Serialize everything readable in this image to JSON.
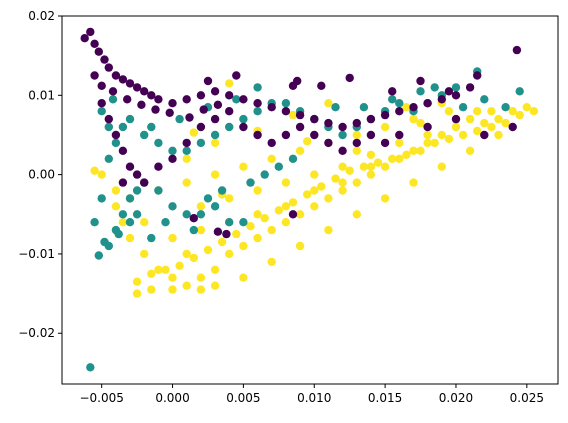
{
  "chart_data": {
    "type": "scatter",
    "title": "",
    "xlabel": "",
    "ylabel": "",
    "xlim": [
      -0.0078,
      0.0272
    ],
    "ylim": [
      -0.0264,
      0.02
    ],
    "grid": false,
    "x_ticks": [
      "−0.005",
      "0.000",
      "0.005",
      "0.010",
      "0.015",
      "0.020",
      "0.025"
    ],
    "y_ticks": [
      "0.02",
      "0.01",
      "0.00",
      "−0.01",
      "−0.02"
    ],
    "x_tick_values": [
      -0.005,
      0.0,
      0.005,
      0.01,
      0.015,
      0.02,
      0.025
    ],
    "y_tick_values": [
      0.02,
      0.01,
      0.0,
      -0.01,
      -0.02
    ],
    "series": [
      {
        "color": "#fde725",
        "points": [
          [
            -0.0035,
            -0.006
          ],
          [
            -0.003,
            -0.008
          ],
          [
            -0.002,
            -0.01
          ],
          [
            -0.001,
            -0.012
          ],
          [
            0.0,
            -0.013
          ],
          [
            0.001,
            -0.014
          ],
          [
            0.002,
            -0.013
          ],
          [
            0.003,
            -0.012
          ],
          [
            0.004,
            -0.01
          ],
          [
            0.005,
            -0.009
          ],
          [
            0.006,
            -0.008
          ],
          [
            0.007,
            -0.007
          ],
          [
            0.008,
            -0.006
          ],
          [
            0.009,
            -0.005
          ],
          [
            0.01,
            -0.004
          ],
          [
            0.011,
            -0.003
          ],
          [
            0.012,
            -0.002
          ],
          [
            0.013,
            -0.001
          ],
          [
            0.014,
            0.0
          ],
          [
            0.015,
            0.001
          ],
          [
            0.016,
            0.002
          ],
          [
            0.017,
            0.003
          ],
          [
            0.018,
            0.004
          ],
          [
            0.019,
            0.005
          ],
          [
            0.02,
            0.006
          ],
          [
            0.021,
            0.007
          ],
          [
            0.022,
            0.0065
          ],
          [
            0.023,
            0.007
          ],
          [
            0.024,
            0.008
          ],
          [
            0.025,
            0.0085
          ],
          [
            0.0255,
            0.008
          ],
          [
            0.0245,
            0.0075
          ],
          [
            0.0235,
            0.0065
          ],
          [
            0.0225,
            0.006
          ],
          [
            0.0215,
            0.0055
          ],
          [
            0.0205,
            0.005
          ],
          [
            0.0195,
            0.0045
          ],
          [
            0.0185,
            0.004
          ],
          [
            0.0175,
            0.003
          ],
          [
            0.0165,
            0.0025
          ],
          [
            0.0155,
            0.002
          ],
          [
            0.0145,
            0.0015
          ],
          [
            0.0135,
            0.001
          ],
          [
            0.0125,
            0.0005
          ],
          [
            0.0115,
            -0.0005
          ],
          [
            0.0105,
            -0.0015
          ],
          [
            0.0095,
            -0.0025
          ],
          [
            0.0085,
            -0.0035
          ],
          [
            0.0075,
            -0.0045
          ],
          [
            0.0065,
            -0.0055
          ],
          [
            0.0055,
            -0.0065
          ],
          [
            0.0045,
            -0.0075
          ],
          [
            0.0035,
            -0.0085
          ],
          [
            0.0025,
            -0.0095
          ],
          [
            0.0015,
            -0.0105
          ],
          [
            0.0005,
            -0.0115
          ],
          [
            -0.0005,
            -0.012
          ],
          [
            -0.0015,
            -0.0125
          ],
          [
            -0.0025,
            -0.0135
          ],
          [
            -0.0025,
            -0.015
          ],
          [
            -0.0015,
            -0.0145
          ],
          [
            0.0,
            -0.0145
          ],
          [
            0.002,
            -0.0145
          ],
          [
            0.003,
            -0.014
          ],
          [
            0.005,
            -0.013
          ],
          [
            0.007,
            -0.011
          ],
          [
            0.009,
            -0.009
          ],
          [
            0.011,
            -0.007
          ],
          [
            0.013,
            -0.005
          ],
          [
            0.015,
            -0.003
          ],
          [
            0.017,
            -0.001
          ],
          [
            0.019,
            0.001
          ],
          [
            0.021,
            0.003
          ],
          [
            0.023,
            0.005
          ],
          [
            0.0195,
            0.008
          ],
          [
            0.017,
            0.007
          ],
          [
            0.015,
            0.006
          ],
          [
            0.013,
            0.005
          ],
          [
            0.011,
            0.004
          ],
          [
            0.009,
            0.003
          ],
          [
            0.007,
            0.002
          ],
          [
            0.005,
            0.001
          ],
          [
            0.003,
            0.0
          ],
          [
            0.001,
            -0.001
          ],
          [
            -0.001,
            -0.002
          ],
          [
            -0.003,
            -0.003
          ],
          [
            -0.004,
            -0.002
          ],
          [
            -0.005,
            0.0
          ],
          [
            -0.0055,
            0.0005
          ],
          [
            -0.004,
            -0.004
          ],
          [
            0.002,
            -0.004
          ],
          [
            0.004,
            -0.003
          ],
          [
            0.006,
            -0.002
          ],
          [
            0.008,
            -0.001
          ],
          [
            0.01,
            0.0
          ],
          [
            0.012,
            0.001
          ],
          [
            0.014,
            0.0025
          ],
          [
            0.016,
            0.004
          ],
          [
            0.018,
            0.005
          ],
          [
            0.02,
            0.007
          ],
          [
            0.0215,
            0.008
          ],
          [
            0.0225,
            0.008
          ],
          [
            0.004,
            0.0115
          ],
          [
            0.011,
            0.009
          ],
          [
            0.0165,
            0.0085
          ],
          [
            0.019,
            0.009
          ],
          [
            0.0085,
            0.0075
          ],
          [
            0.006,
            0.0055
          ],
          [
            0.003,
            0.004
          ],
          [
            0.001,
            0.002
          ],
          [
            0.002,
            -0.007
          ],
          [
            0.004,
            -0.006
          ],
          [
            0.006,
            -0.005
          ],
          [
            0.008,
            -0.004
          ],
          [
            0.01,
            -0.002
          ],
          [
            0.012,
            -0.001
          ],
          [
            0.014,
            0.001
          ],
          [
            -0.002,
            -0.006
          ],
          [
            0.0,
            -0.008
          ],
          [
            0.001,
            -0.01
          ],
          [
            0.0015,
            0.0053
          ],
          [
            0.0035,
            -0.0025
          ],
          [
            0.0095,
            0.0042
          ],
          [
            0.013,
            0.003
          ],
          [
            0.0175,
            0.0065
          ]
        ]
      },
      {
        "color": "#21918c",
        "points": [
          [
            -0.0058,
            -0.0243
          ],
          [
            -0.0052,
            -0.0102
          ],
          [
            -0.0045,
            -0.009
          ],
          [
            -0.004,
            -0.007
          ],
          [
            -0.0035,
            -0.005
          ],
          [
            -0.003,
            -0.003
          ],
          [
            -0.0025,
            -0.002
          ],
          [
            -0.002,
            -0.001
          ],
          [
            -0.001,
            -0.002
          ],
          [
            0.0,
            -0.004
          ],
          [
            0.001,
            -0.005
          ],
          [
            0.002,
            -0.005
          ],
          [
            0.003,
            -0.004
          ],
          [
            0.004,
            -0.006
          ],
          [
            0.005,
            -0.006
          ],
          [
            -0.0045,
            0.002
          ],
          [
            -0.004,
            0.004
          ],
          [
            -0.0035,
            0.006
          ],
          [
            -0.003,
            0.007
          ],
          [
            -0.002,
            0.005
          ],
          [
            -0.001,
            0.004
          ],
          [
            0.0,
            0.003
          ],
          [
            0.001,
            0.003
          ],
          [
            0.002,
            0.004
          ],
          [
            0.003,
            0.005
          ],
          [
            0.004,
            0.006
          ],
          [
            0.005,
            0.007
          ],
          [
            0.006,
            0.008
          ],
          [
            0.007,
            0.009
          ],
          [
            0.008,
            0.009
          ],
          [
            0.009,
            0.008
          ],
          [
            0.01,
            0.007
          ],
          [
            0.011,
            0.006
          ],
          [
            0.012,
            0.005
          ],
          [
            0.013,
            0.006
          ],
          [
            0.014,
            0.007
          ],
          [
            0.015,
            0.008
          ],
          [
            0.016,
            0.009
          ],
          [
            0.017,
            0.008
          ],
          [
            0.018,
            0.009
          ],
          [
            0.019,
            0.01
          ],
          [
            0.02,
            0.011
          ],
          [
            0.0215,
            0.013
          ],
          [
            0.0245,
            0.0105
          ],
          [
            0.006,
            0.011
          ],
          [
            0.0045,
            0.0095
          ],
          [
            0.0025,
            0.0085
          ],
          [
            0.0005,
            0.007
          ],
          [
            -0.0015,
            0.006
          ],
          [
            -0.0025,
            -0.005
          ],
          [
            -0.0015,
            -0.008
          ],
          [
            -0.0005,
            -0.006
          ],
          [
            0.0015,
            -0.007
          ],
          [
            0.0025,
            -0.003
          ],
          [
            0.0035,
            -0.002
          ],
          [
            0.0055,
            -0.001
          ],
          [
            0.0065,
            0.0
          ],
          [
            0.0075,
            0.001
          ],
          [
            0.0085,
            0.002
          ],
          [
            -0.005,
            -0.003
          ],
          [
            -0.0055,
            -0.006
          ],
          [
            -0.0048,
            -0.0085
          ],
          [
            -0.0038,
            -0.0075
          ],
          [
            -0.003,
            -0.006
          ],
          [
            -0.0045,
            0.006
          ],
          [
            -0.005,
            0.008
          ],
          [
            -0.0042,
            0.0095
          ],
          [
            0.0135,
            0.0085
          ],
          [
            0.0155,
            0.0095
          ],
          [
            0.0115,
            0.0085
          ],
          [
            0.0175,
            0.0105
          ],
          [
            0.0185,
            0.011
          ],
          [
            0.022,
            0.0095
          ],
          [
            0.0235,
            0.0085
          ],
          [
            0.0205,
            0.0085
          ]
        ]
      },
      {
        "color": "#440154",
        "points": [
          [
            -0.0062,
            0.0172
          ],
          [
            -0.0058,
            0.018
          ],
          [
            -0.0055,
            0.0165
          ],
          [
            -0.0052,
            0.0155
          ],
          [
            -0.0048,
            0.0145
          ],
          [
            -0.0045,
            0.0135
          ],
          [
            -0.004,
            0.0125
          ],
          [
            -0.0035,
            0.012
          ],
          [
            -0.003,
            0.0115
          ],
          [
            -0.0025,
            0.011
          ],
          [
            -0.002,
            0.0105
          ],
          [
            -0.0015,
            0.01
          ],
          [
            -0.001,
            0.0095
          ],
          [
            0.0,
            0.009
          ],
          [
            0.001,
            0.0095
          ],
          [
            0.002,
            0.01
          ],
          [
            0.003,
            0.0105
          ],
          [
            0.004,
            0.01
          ],
          [
            0.005,
            0.0095
          ],
          [
            0.006,
            0.009
          ],
          [
            0.007,
            0.0085
          ],
          [
            0.008,
            0.008
          ],
          [
            0.009,
            0.0075
          ],
          [
            0.01,
            0.007
          ],
          [
            0.011,
            0.0065
          ],
          [
            0.012,
            0.006
          ],
          [
            0.013,
            0.0065
          ],
          [
            0.014,
            0.007
          ],
          [
            0.015,
            0.0075
          ],
          [
            0.016,
            0.008
          ],
          [
            0.017,
            0.0085
          ],
          [
            0.018,
            0.009
          ],
          [
            0.019,
            0.0095
          ],
          [
            0.02,
            0.01
          ],
          [
            0.021,
            0.011
          ],
          [
            0.0243,
            0.0157
          ],
          [
            0.0125,
            0.0122
          ],
          [
            0.0088,
            0.0118
          ],
          [
            0.0105,
            0.0112
          ],
          [
            0.0155,
            0.0105
          ],
          [
            0.0175,
            0.0118
          ],
          [
            0.0085,
            0.0112
          ],
          [
            0.0045,
            0.0125
          ],
          [
            0.0025,
            0.0118
          ],
          [
            -0.005,
            0.009
          ],
          [
            -0.0045,
            0.007
          ],
          [
            -0.004,
            0.005
          ],
          [
            -0.0035,
            0.003
          ],
          [
            -0.003,
            0.001
          ],
          [
            -0.0025,
            0.0
          ],
          [
            -0.002,
            -0.001
          ],
          [
            -0.001,
            0.001
          ],
          [
            0.0,
            0.002
          ],
          [
            0.001,
            0.004
          ],
          [
            0.002,
            0.006
          ],
          [
            0.003,
            0.007
          ],
          [
            0.004,
            0.008
          ],
          [
            0.005,
            0.006
          ],
          [
            0.006,
            0.005
          ],
          [
            0.007,
            0.004
          ],
          [
            0.008,
            0.005
          ],
          [
            0.009,
            0.006
          ],
          [
            0.01,
            0.005
          ],
          [
            0.011,
            0.004
          ],
          [
            0.012,
            0.003
          ],
          [
            0.013,
            0.004
          ],
          [
            0.014,
            0.005
          ],
          [
            0.015,
            0.004
          ],
          [
            0.016,
            0.005
          ],
          [
            0.018,
            0.006
          ],
          [
            0.02,
            0.007
          ],
          [
            0.022,
            0.005
          ],
          [
            0.024,
            0.006
          ],
          [
            0.0215,
            0.0125
          ],
          [
            0.0195,
            0.0105
          ],
          [
            0.0038,
            -0.0075
          ],
          [
            0.0015,
            -0.0055
          ],
          [
            0.0032,
            -0.0072
          ],
          [
            0.0085,
            -0.005
          ],
          [
            -0.0035,
            -0.001
          ],
          [
            -0.0055,
            0.0125
          ],
          [
            -0.005,
            0.0112
          ],
          [
            -0.0042,
            0.0105
          ],
          [
            -0.0032,
            0.0095
          ],
          [
            -0.0022,
            0.0088
          ],
          [
            -0.0012,
            0.0082
          ],
          [
            -0.0002,
            0.0078
          ],
          [
            0.0012,
            0.0072
          ],
          [
            0.0022,
            0.0082
          ],
          [
            0.0032,
            0.0088
          ]
        ]
      }
    ]
  }
}
